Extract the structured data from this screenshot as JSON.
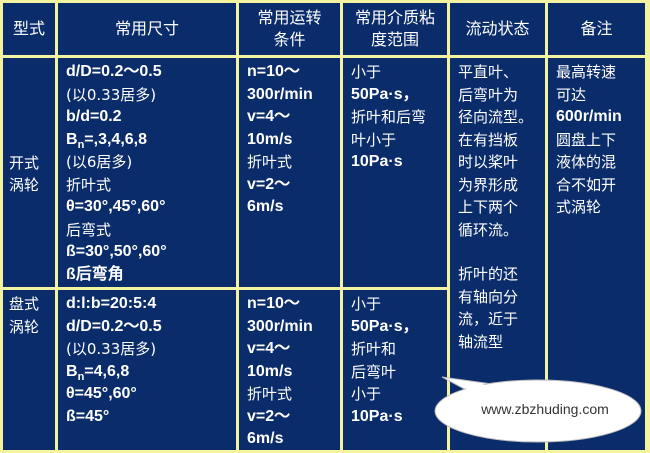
{
  "colors": {
    "cell_bg": "#0b2c6b",
    "grid": "#f4f4a0",
    "text": "#ffffff"
  },
  "headers": [
    "型式",
    "常用尺寸",
    "常用运转条件",
    "常用介质粘度范围",
    "流动状态",
    "备注"
  ],
  "headers_lines": [
    [
      "型式"
    ],
    [
      "常用尺寸"
    ],
    [
      "常用运转",
      "条件"
    ],
    [
      "常用介质粘",
      "度范围"
    ],
    [
      "流动状态"
    ],
    [
      "备注"
    ]
  ],
  "rows": [
    {
      "type": [
        "开式",
        "涡轮"
      ],
      "dimensions": [
        "d/D=0.2～0.5",
        "(以0.33居多)",
        "b/d=0.2",
        "B_n=,3,4,6,8",
        "(以6居多)",
        "折叶式",
        "θ=30°,45°,60°",
        "后弯式",
        "ß=30°,50°,60°",
        "ß后弯角"
      ],
      "conditions": [
        "n=10～",
        "300r/min",
        "v=4～",
        "10m/s",
        "折叶式",
        "v=2～",
        "6m/s"
      ],
      "viscosity": [
        "小于",
        "50Pa·s，",
        "折叶和后弯",
        "叶小于",
        "10Pa·s"
      ]
    },
    {
      "type": [
        "盘式",
        "涡轮"
      ],
      "dimensions": [
        "d:l:b=20:5:4",
        "d/D=0.2～0.5",
        "(以0.33居多)",
        "B_n=4,6,8",
        "θ=45°,60°",
        "ß=45°"
      ],
      "conditions": [
        "n=10～",
        "300r/min",
        "v=4～",
        "10m/s",
        "折叶式",
        "v=2～",
        "6m/s"
      ],
      "viscosity": [
        "小于",
        "50Pa·s，",
        "折叶和",
        "后弯叶",
        "小于",
        "10Pa·s"
      ]
    }
  ],
  "flow_state": [
    "平直叶、",
    "后弯叶为",
    "径向流型。",
    "在有挡板",
    "时以桨叶",
    "为界形成",
    "上下两个",
    "循环流。",
    "",
    "折叶的还",
    "有轴向分",
    "流，近于",
    "轴流型"
  ],
  "notes": [
    "最高转速",
    "可达",
    "600r/min",
    "圆盘上下",
    "液体的混",
    "合不如开",
    "式涡轮"
  ],
  "watermark": "www.zbzhuding.com"
}
